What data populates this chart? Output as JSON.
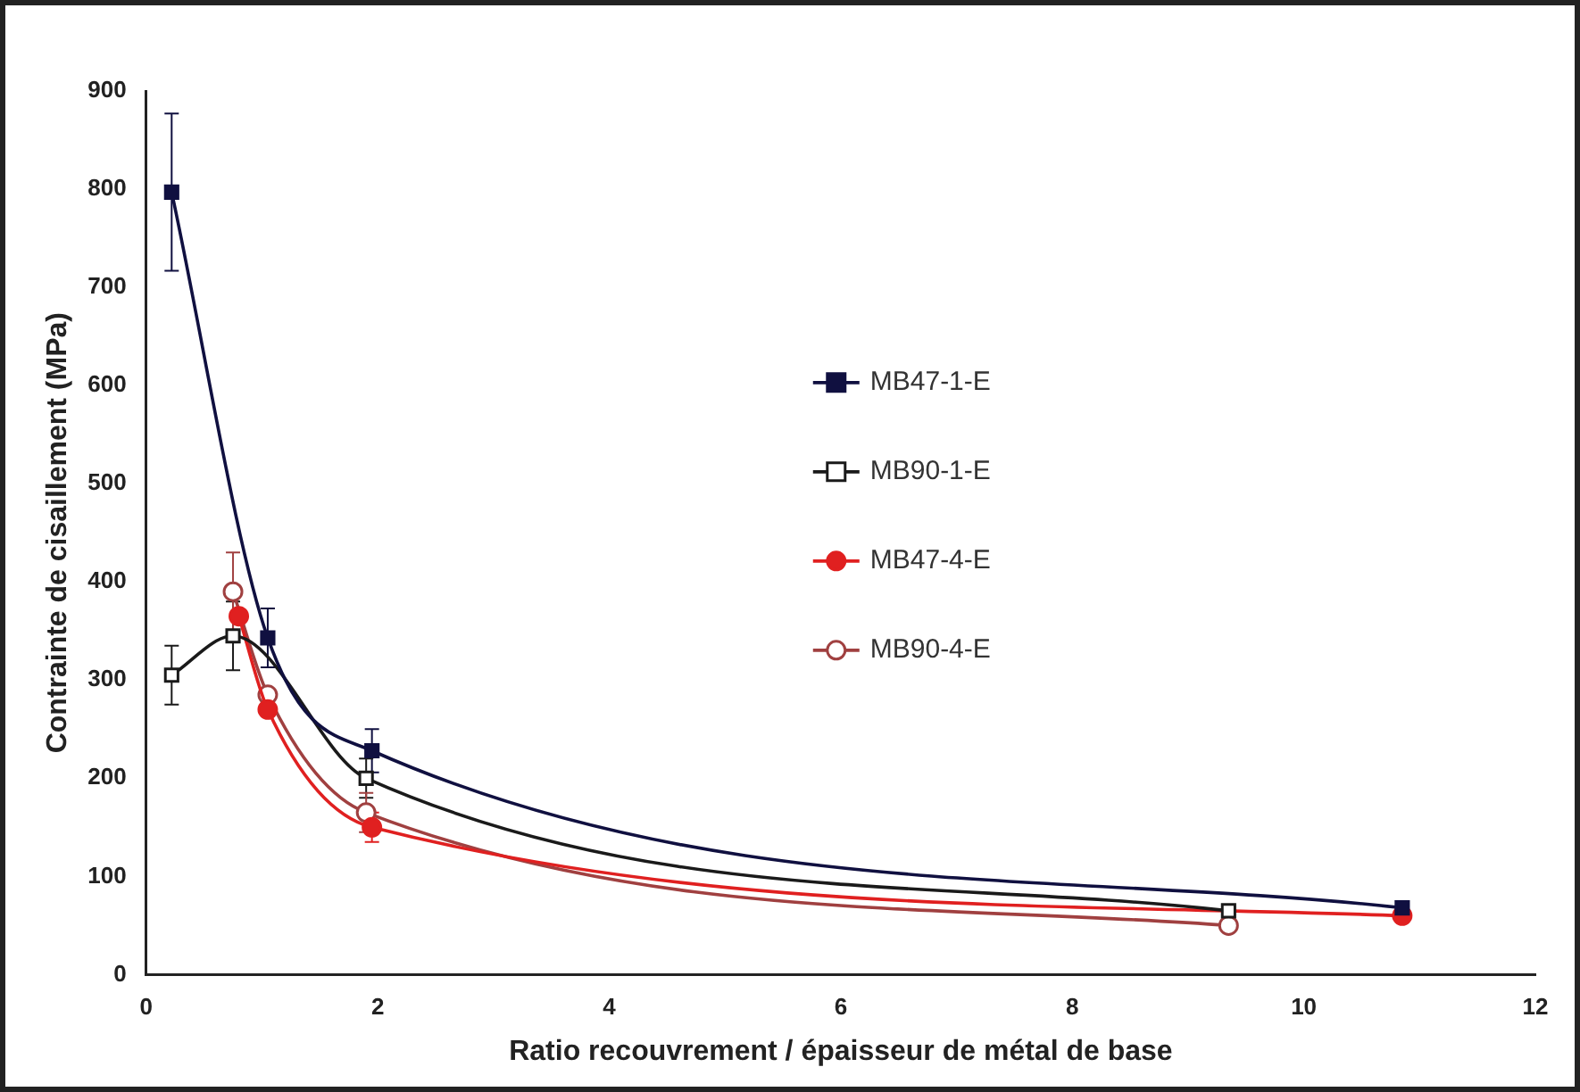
{
  "chart_data": {
    "type": "line",
    "xlabel": "Ratio recouvrement / épaisseur de métal de base",
    "ylabel": "Contrainte de cisaillement (MPa)",
    "xlim": [
      0,
      12
    ],
    "xticks": [
      0,
      2,
      4,
      6,
      8,
      10,
      12
    ],
    "ylim": [
      0,
      900
    ],
    "yticks": [
      0,
      100,
      200,
      300,
      400,
      500,
      600,
      700,
      800,
      900
    ],
    "grid": false,
    "legend": "right",
    "series": [
      {
        "name": "MB47-1-E",
        "color": "#101040",
        "marker": "square",
        "x": [
          0.22,
          1.05,
          1.95,
          10.85
        ],
        "values": [
          797,
          343,
          228,
          68
        ],
        "errors": [
          80,
          30,
          22,
          null
        ]
      },
      {
        "name": "MB90-1-E",
        "color": "#1a1a1a",
        "marker": "square",
        "colors": [
          "#ffffff",
          "#ffffff",
          "#ffffff",
          "#ffffff"
        ],
        "x": [
          0.22,
          0.75,
          1.9,
          9.35
        ],
        "values": [
          305,
          345,
          200,
          65
        ],
        "errors": [
          30,
          35,
          20,
          null
        ]
      },
      {
        "name": "MB47-4-E",
        "color": "#e02020",
        "marker": "circle",
        "x": [
          0.8,
          1.05,
          1.95,
          10.85
        ],
        "values": [
          365,
          270,
          150,
          60
        ],
        "errors": [
          null,
          null,
          15,
          null
        ]
      },
      {
        "name": "MB90-4-E",
        "color": "#a04040",
        "marker": "circle",
        "colors": [
          "#ffffff",
          "#ffffff",
          "#ffffff",
          "#ffffff"
        ],
        "x": [
          0.75,
          1.05,
          1.9,
          9.35
        ],
        "values": [
          390,
          285,
          165,
          50
        ],
        "errors": [
          40,
          null,
          20,
          null
        ]
      }
    ]
  }
}
